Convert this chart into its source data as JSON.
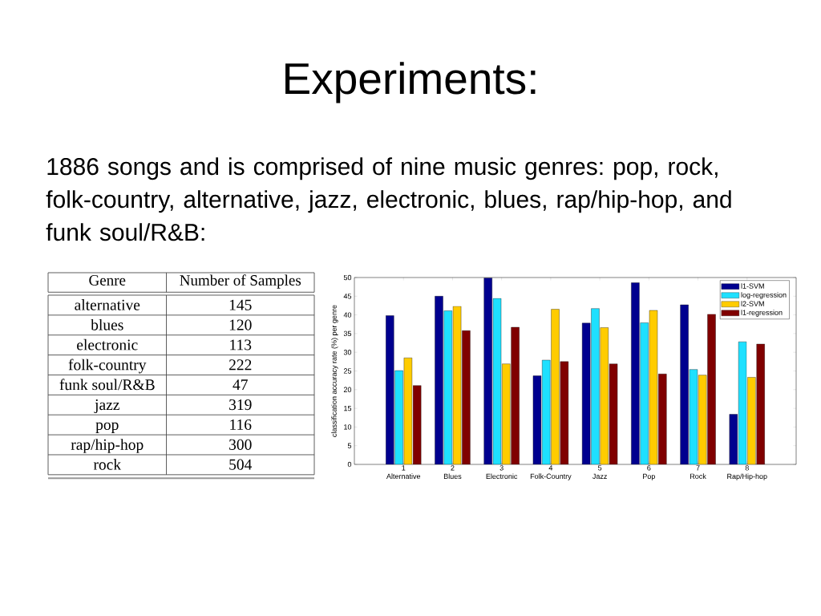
{
  "chart_data": [
    {
      "type": "other",
      "title": "Experiments:",
      "subtitle": "1886 songs and is comprised of nine music genres: pop, rock, folk-country, alternative, jazz, electronic, blues, rap/hip-hop, and funk soul/R&B:",
      "xlabel": "Genre",
      "ylabel": "Number of Samples",
      "categories": [
        "alternative",
        "blues",
        "electronic",
        "folk-country",
        "funk soul/R&B",
        "jazz",
        "pop",
        "rap/hip-hop",
        "rock"
      ],
      "values": [
        145,
        120,
        113,
        222,
        47,
        319,
        116,
        300,
        504
      ],
      "data_labels": true
    },
    {
      "type": "bar",
      "ylabel": "classification accuracy rate (%) per genre",
      "categories": [
        "1\nAlternative",
        "2\nBlues",
        "3\nElectronic",
        "4\nFolk-Country",
        "5\nJazz",
        "6\nPop",
        "7\nRock",
        "8\nRap/Hip-hop"
      ],
      "ylim": [
        0,
        50
      ],
      "yticks": [
        0,
        5,
        10,
        15,
        20,
        25,
        30,
        35,
        40,
        45,
        50
      ],
      "legend": "top right",
      "series": [
        {
          "name": "l1-SVM",
          "color": "#00008f",
          "values": [
            39.8,
            45.0,
            49.9,
            23.7,
            37.8,
            48.6,
            42.7,
            13.4
          ]
        },
        {
          "name": "log-regression",
          "color": "#1ee0ff",
          "values": [
            25.1,
            41.1,
            44.4,
            27.9,
            41.7,
            37.9,
            25.4,
            32.8
          ]
        },
        {
          "name": "l2-SVM",
          "color": "#ffcc00",
          "values": [
            28.5,
            42.3,
            26.9,
            41.5,
            36.6,
            41.2,
            23.9,
            23.3
          ]
        },
        {
          "name": "l1-regression",
          "color": "#800000",
          "values": [
            21.1,
            35.8,
            36.7,
            27.5,
            26.9,
            24.2,
            40.2,
            32.2
          ]
        }
      ]
    }
  ]
}
